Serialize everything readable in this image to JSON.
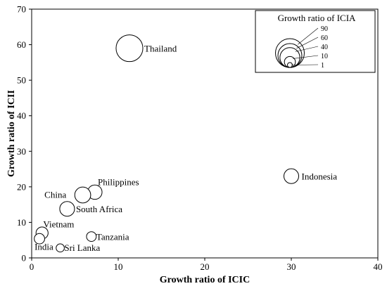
{
  "chart_data": {
    "type": "scatter",
    "title": "",
    "xlabel": "Growth ratio of ICIC",
    "ylabel": "Growth ratio of ICII",
    "xlim": [
      0,
      40
    ],
    "ylim": [
      0,
      70
    ],
    "xticks": [
      0,
      10,
      20,
      30,
      40
    ],
    "yticks": [
      0,
      10,
      20,
      30,
      40,
      50,
      60,
      70
    ],
    "grid": false,
    "size_variable": "Growth ratio of ICIA",
    "points": [
      {
        "label": "Thailand",
        "x": 11.3,
        "y": 59,
        "size": 60
      },
      {
        "label": "Indonesia",
        "x": 30.0,
        "y": 23,
        "size": 15
      },
      {
        "label": "Philippines",
        "x": 7.3,
        "y": 18.5,
        "size": 14
      },
      {
        "label": "China",
        "x": 5.9,
        "y": 17.7,
        "size": 18
      },
      {
        "label": "South Africa",
        "x": 4.1,
        "y": 13.8,
        "size": 15
      },
      {
        "label": "Vietnam",
        "x": 1.2,
        "y": 7.0,
        "size": 9
      },
      {
        "label": "India",
        "x": 0.9,
        "y": 5.4,
        "size": 6
      },
      {
        "label": "Tanzania",
        "x": 6.9,
        "y": 6.0,
        "size": 5
      },
      {
        "label": "Sri Lanka",
        "x": 3.3,
        "y": 2.8,
        "size": 3
      }
    ],
    "legend": {
      "title": "Growth ratio of ICIA",
      "placement": "top-right",
      "sizes": [
        90,
        60,
        40,
        10,
        1
      ],
      "labels": [
        "90",
        "60",
        "40",
        "10",
        "1"
      ]
    }
  }
}
